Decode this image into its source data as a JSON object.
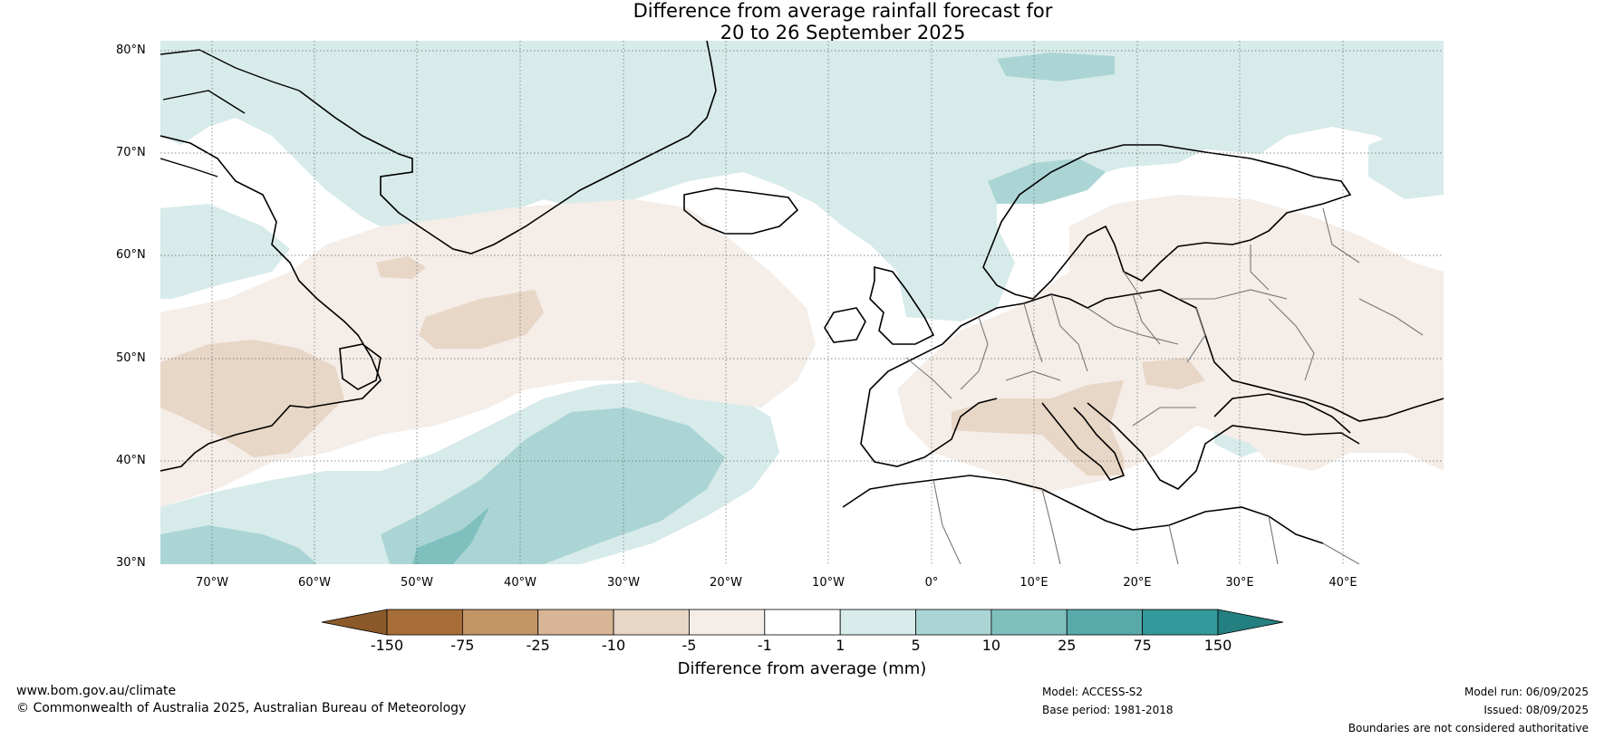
{
  "title": {
    "line1": "Difference from average rainfall forecast for",
    "line2": "20 to 26 September 2025"
  },
  "latitude_labels": [
    "80°N",
    "70°N",
    "60°N",
    "50°N",
    "40°N",
    "30°N"
  ],
  "longitude_labels": [
    "70°W",
    "60°W",
    "50°W",
    "40°W",
    "30°W",
    "20°W",
    "10°W",
    "0°",
    "10°E",
    "20°E",
    "30°E",
    "40°E"
  ],
  "colorbar": {
    "labels": [
      "-150",
      "-75",
      "-25",
      "-10",
      "-5",
      "-1",
      "1",
      "5",
      "10",
      "25",
      "75",
      "150"
    ],
    "colors": [
      "#8c5a2a",
      "#a86e3a",
      "#c29466",
      "#d7b596",
      "#e8d6c6",
      "#f4ede8",
      "#ffffff",
      "#d7ebea",
      "#abd5d4",
      "#7fc0bf",
      "#58aaaa",
      "#33999a",
      "#247f80"
    ],
    "title": "Difference from average (mm)"
  },
  "footer": {
    "url": "www.bom.gov.au/climate",
    "copyright": "© Commonwealth of Australia 2025, Australian Bureau of Meteorology",
    "model": "Model: ACCESS-S2",
    "base_period": "Base period: 1981-2018",
    "model_run": "Model run: 06/09/2025",
    "issued": "Issued: 08/09/2025",
    "disclaimer": "Boundaries are not considered authoritative"
  }
}
